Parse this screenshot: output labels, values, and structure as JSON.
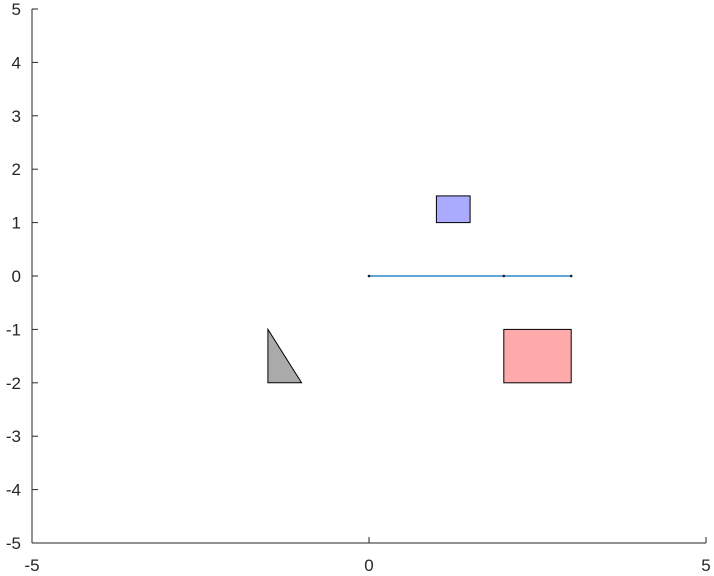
{
  "chart_data": {
    "type": "scatter",
    "title": "",
    "xlabel": "",
    "ylabel": "",
    "xlim": [
      -5,
      5
    ],
    "ylim": [
      -5,
      5
    ],
    "grid": false,
    "xticks": [
      -5,
      0,
      5
    ],
    "yticks": [
      5,
      4,
      3,
      2,
      1,
      0,
      -1,
      -2,
      -3,
      -4,
      -5
    ],
    "xtick_labels": [
      "-5",
      "0",
      "5"
    ],
    "ytick_labels": [
      "5",
      "4",
      "3",
      "2",
      "1",
      "0",
      "-1",
      "-2",
      "-3",
      "-4",
      "-5"
    ],
    "line": {
      "points": [
        [
          0,
          0
        ],
        [
          2,
          0
        ],
        [
          3,
          0
        ]
      ],
      "color": "#0072BD"
    },
    "shapes": [
      {
        "kind": "rectangle",
        "x": [
          1,
          1.5
        ],
        "y": [
          1,
          1.5
        ],
        "fill": "#aaaaff",
        "edge": "#000000"
      },
      {
        "kind": "rectangle",
        "x": [
          2,
          3
        ],
        "y": [
          -2,
          -1
        ],
        "fill": "#ffaaaa",
        "edge": "#000000"
      },
      {
        "kind": "triangle",
        "points": [
          [
            -1.5,
            -1
          ],
          [
            -1.5,
            -2
          ],
          [
            -1,
            -2
          ]
        ],
        "fill": "#aaaaaa",
        "edge": "#000000"
      }
    ]
  }
}
